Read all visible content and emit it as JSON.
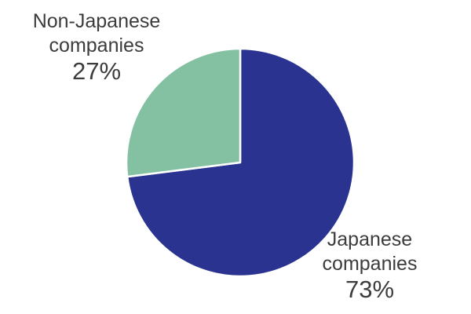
{
  "chart_data": {
    "type": "pie",
    "title": "",
    "categories": [
      "Japanese companies",
      "Non-Japanese companies"
    ],
    "values": [
      73,
      27
    ],
    "slices": [
      {
        "label": "Japanese companies",
        "label_lines": [
          "Japanese",
          "companies"
        ],
        "value": 73,
        "pct_label": "73%",
        "color": "#2b3391"
      },
      {
        "label": "Non-Japanese companies",
        "label_lines": [
          "Non-Japanese",
          "companies"
        ],
        "value": 27,
        "pct_label": "27%",
        "color": "#83c1a2"
      }
    ],
    "start_angle_deg": 0,
    "direction": "clockwise",
    "separator_color": "#ffffff",
    "background_color": "#ffffff",
    "label_text_color": "#3c3c3c",
    "legend_position": "none",
    "labels_placement": "outside"
  }
}
